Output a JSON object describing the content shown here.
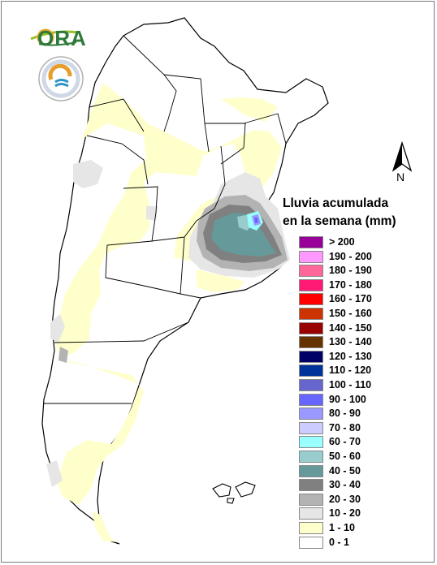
{
  "map": {
    "legend_title_line1": "Lluvia acumulada",
    "legend_title_line2": "en la semana (mm)",
    "north_label": "N",
    "logo_text": "ORA",
    "legend": [
      {
        "label": "> 200",
        "color": "#990099"
      },
      {
        "label": "190 - 200",
        "color": "#ff99ff"
      },
      {
        "label": "180 - 190",
        "color": "#ff6699"
      },
      {
        "label": "170 - 180",
        "color": "#ff1a75"
      },
      {
        "label": "160 - 170",
        "color": "#ff0000"
      },
      {
        "label": "150 - 160",
        "color": "#cc3300"
      },
      {
        "label": "140 - 150",
        "color": "#990000"
      },
      {
        "label": "130 - 140",
        "color": "#663300"
      },
      {
        "label": "120 - 130",
        "color": "#000066"
      },
      {
        "label": "110 - 120",
        "color": "#003399"
      },
      {
        "label": "100 - 110",
        "color": "#6666cc"
      },
      {
        "label": "90 - 100",
        "color": "#6666ff"
      },
      {
        "label": "80 - 90",
        "color": "#9999ff"
      },
      {
        "label": "70 - 80",
        "color": "#ccccff"
      },
      {
        "label": "60 - 70",
        "color": "#99ffff"
      },
      {
        "label": "50 - 60",
        "color": "#99cccc"
      },
      {
        "label": "40 - 50",
        "color": "#669999"
      },
      {
        "label": "30 - 40",
        "color": "#808080"
      },
      {
        "label": "20 - 30",
        "color": "#b3b3b3"
      },
      {
        "label": "10 - 20",
        "color": "#e6e6e6"
      },
      {
        "label": "1 - 10",
        "color": "#ffffcc"
      },
      {
        "label": "0 - 1",
        "color": "#ffffff"
      }
    ]
  }
}
